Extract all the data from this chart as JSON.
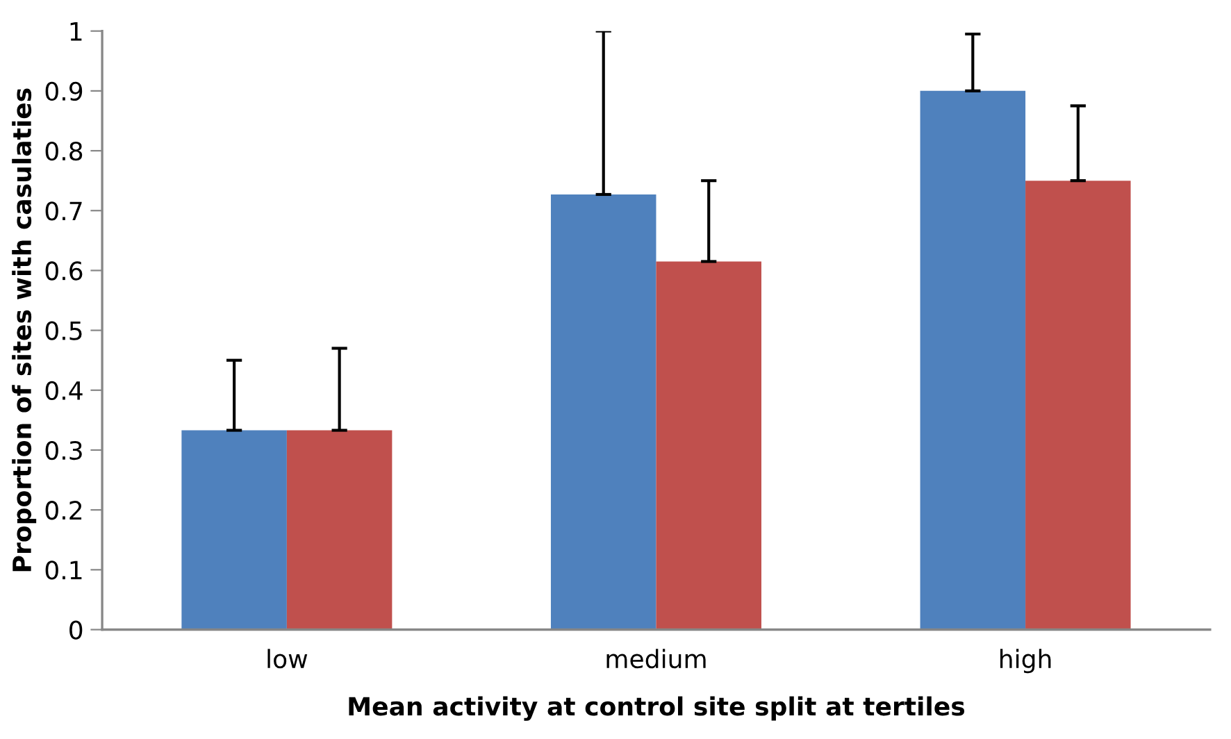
{
  "chart_data": {
    "type": "bar",
    "xlabel": "Mean activity at control site split at tertiles",
    "ylabel": "Proportion of sites with casulaties",
    "categories": [
      "low",
      "medium",
      "high"
    ],
    "series": [
      {
        "color": "#4f81bd",
        "values": [
          0.333,
          0.727,
          0.9
        ],
        "errors": [
          [
            0.333,
            0.45
          ],
          [
            0.727,
            1
          ],
          [
            0.9,
            0.995
          ]
        ]
      },
      {
        "color": "#c0504d",
        "values": [
          0.333,
          0.615,
          0.75
        ],
        "errors": [
          [
            0.333,
            0.47
          ],
          [
            0.615,
            0.75
          ],
          [
            0.75,
            0.875
          ]
        ]
      }
    ],
    "ylim": [
      0,
      1
    ],
    "yticks": [
      0,
      0.1,
      0.2,
      0.3,
      0.4,
      0.5,
      0.6,
      0.7,
      0.8,
      0.9,
      1
    ],
    "grid": false,
    "legend": false
  }
}
